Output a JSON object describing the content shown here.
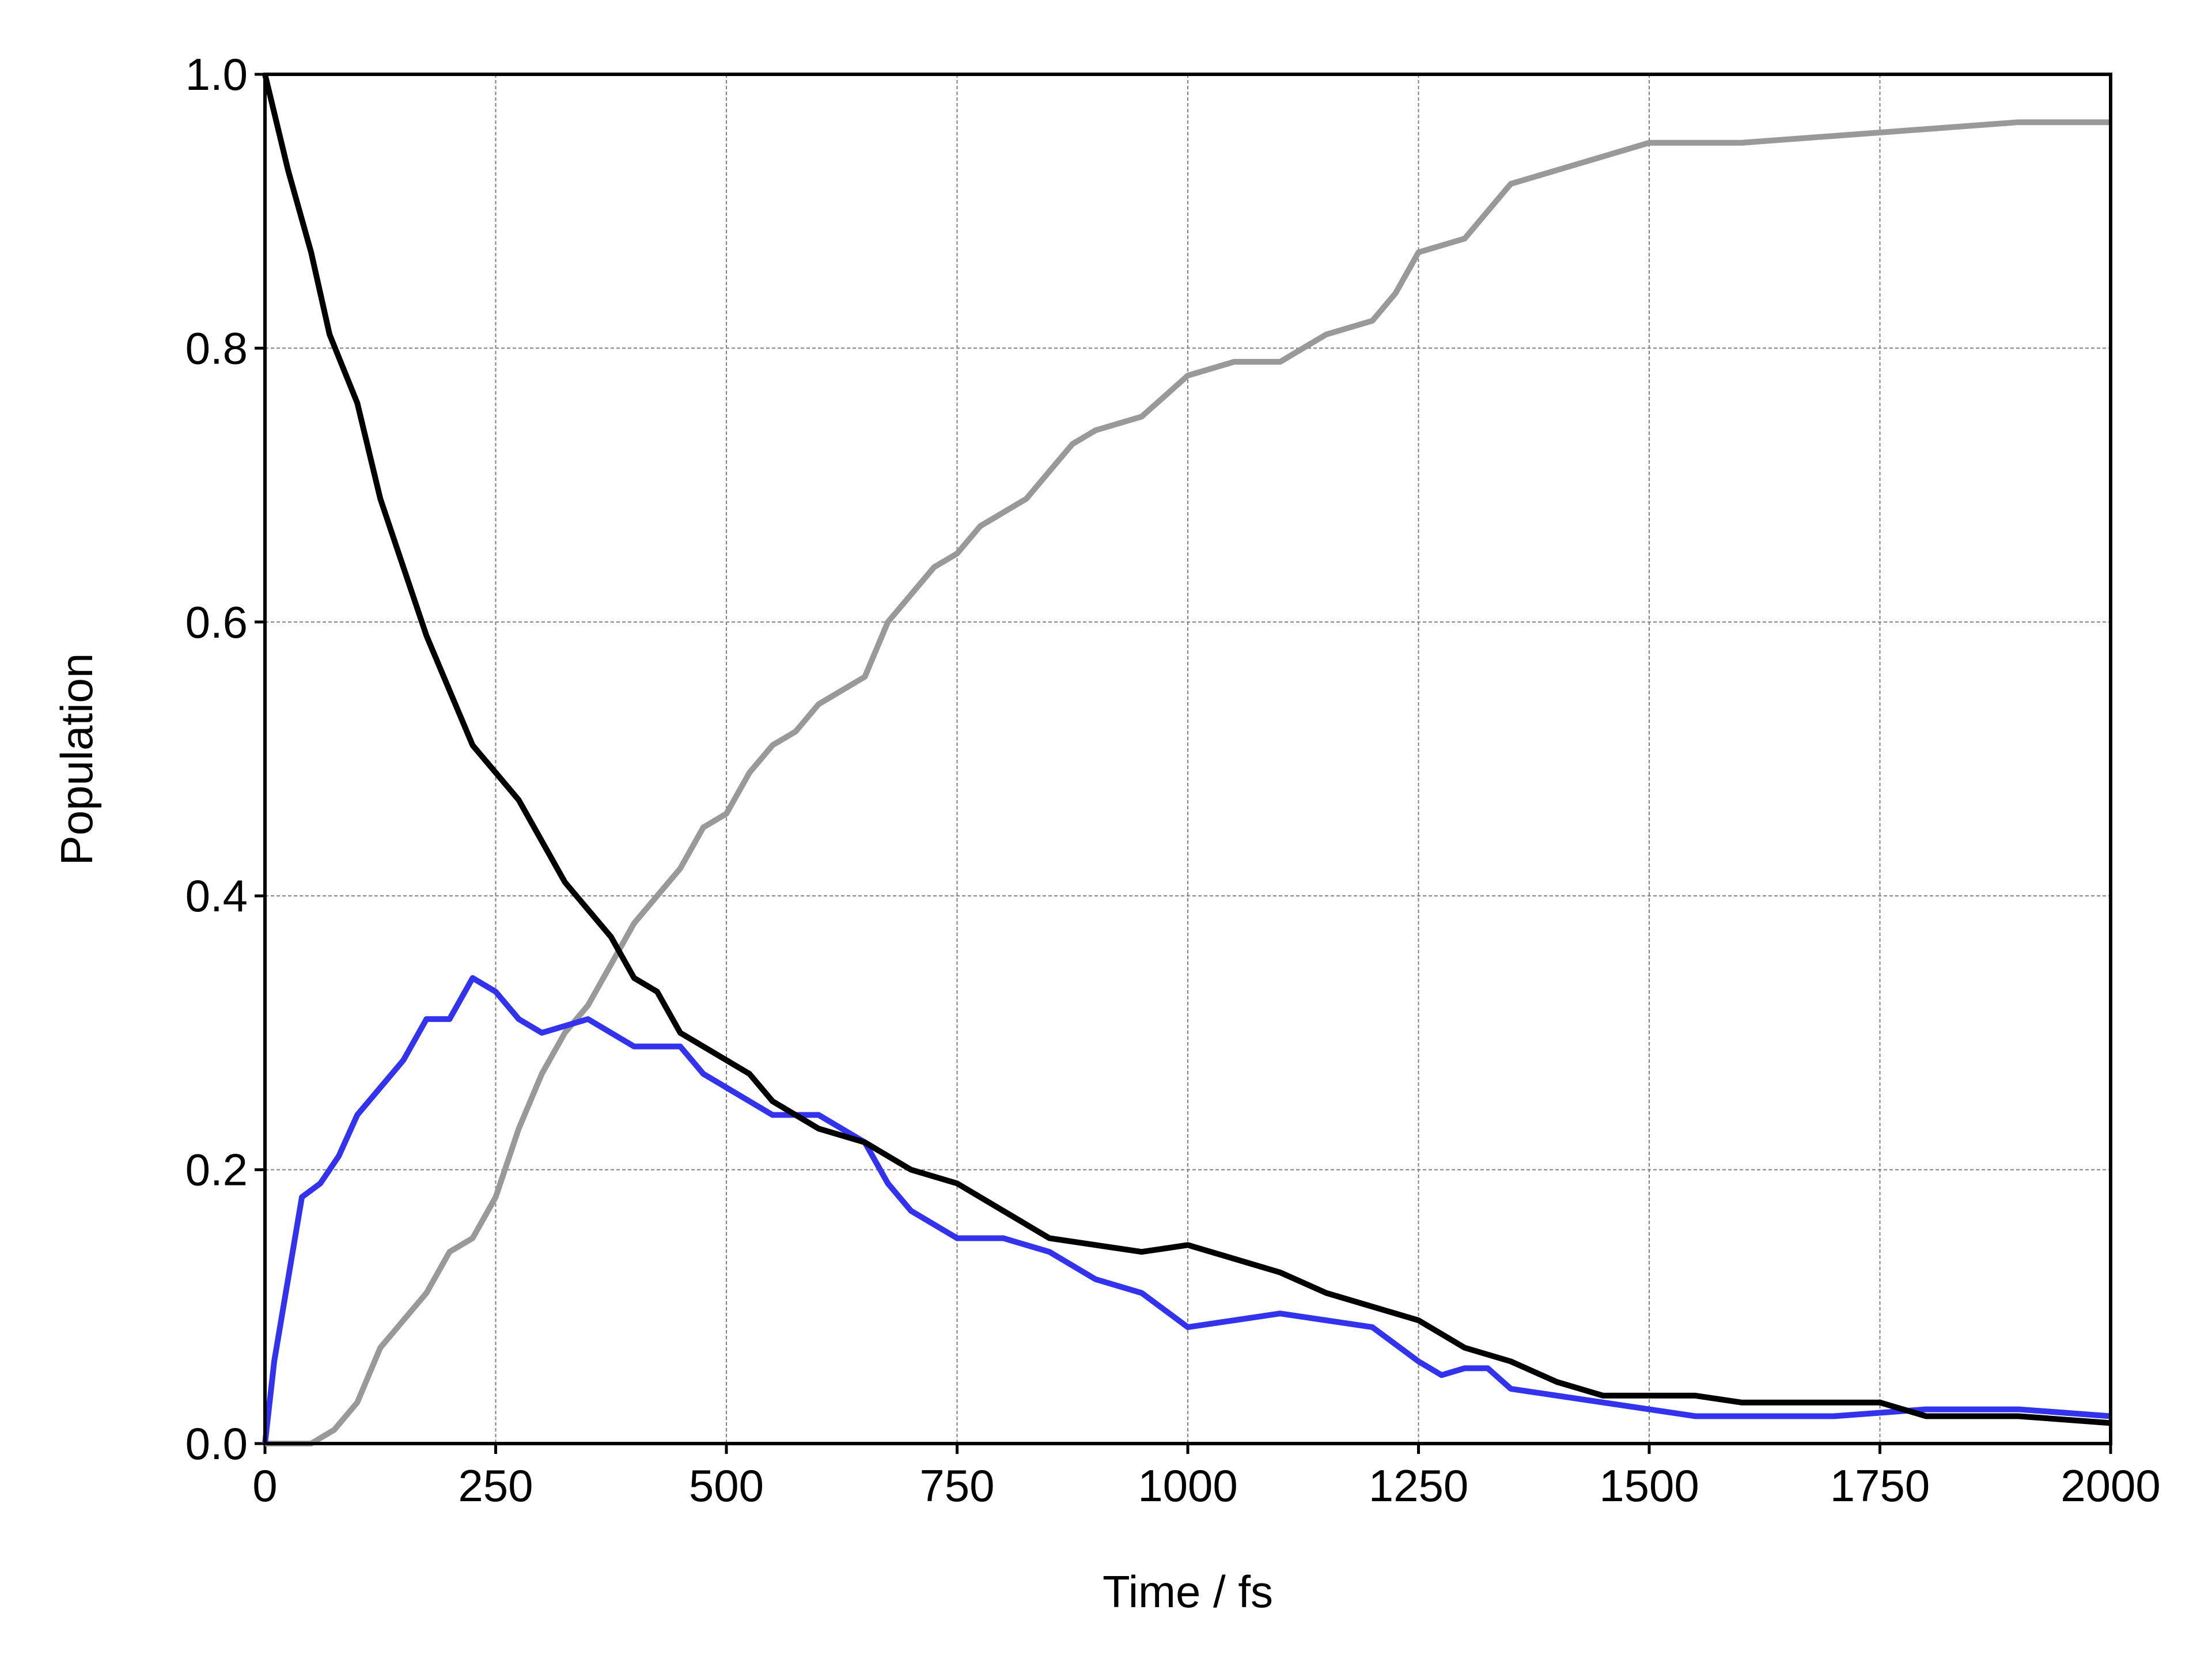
{
  "chart_data": {
    "type": "line",
    "x_label": "Time / fs",
    "y_label": "Population",
    "xlim": [
      0,
      2000
    ],
    "ylim": [
      0,
      1
    ],
    "xticks": [
      0,
      250,
      500,
      750,
      1000,
      1250,
      1500,
      1750,
      2000
    ],
    "yticks": [
      {
        "value": 0,
        "label": "0.0"
      },
      0.2,
      0.4,
      0.6,
      0.8,
      {
        "value": 1,
        "label": "1.0"
      }
    ],
    "grid": true,
    "series": [
      {
        "color": "#999999",
        "x": [
          0,
          50,
          75,
          100,
          125,
          150,
          175,
          200,
          225,
          250,
          275,
          300,
          325,
          350,
          375,
          400,
          425,
          450,
          475,
          500,
          525,
          550,
          575,
          600,
          650,
          675,
          700,
          725,
          750,
          775,
          800,
          825,
          850,
          875,
          900,
          950,
          1000,
          1050,
          1100,
          1150,
          1200,
          1225,
          1250,
          1300,
          1325,
          1350,
          1400,
          1450,
          1500,
          1600,
          1700,
          1800,
          1900,
          2000
        ],
        "values": [
          0,
          0,
          0.01,
          0.03,
          0.07,
          0.09,
          0.11,
          0.14,
          0.15,
          0.18,
          0.23,
          0.27,
          0.3,
          0.32,
          0.35,
          0.38,
          0.4,
          0.42,
          0.45,
          0.46,
          0.49,
          0.51,
          0.52,
          0.54,
          0.56,
          0.6,
          0.62,
          0.64,
          0.65,
          0.67,
          0.68,
          0.69,
          0.71,
          0.73,
          0.74,
          0.75,
          0.78,
          0.79,
          0.79,
          0.81,
          0.82,
          0.84,
          0.87,
          0.88,
          0.9,
          0.92,
          0.93,
          0.94,
          0.95,
          0.95,
          0.955,
          0.96,
          0.965,
          0.965
        ]
      },
      {
        "color": "#3333ee",
        "x": [
          0,
          10,
          25,
          40,
          60,
          80,
          100,
          125,
          150,
          175,
          200,
          225,
          250,
          275,
          300,
          350,
          375,
          400,
          450,
          475,
          500,
          525,
          550,
          600,
          650,
          675,
          700,
          750,
          800,
          850,
          900,
          950,
          1000,
          1050,
          1100,
          1150,
          1200,
          1250,
          1275,
          1300,
          1325,
          1350,
          1400,
          1450,
          1500,
          1550,
          1600,
          1700,
          1800,
          1900,
          2000
        ],
        "values": [
          0,
          0.06,
          0.12,
          0.18,
          0.19,
          0.21,
          0.24,
          0.26,
          0.28,
          0.31,
          0.31,
          0.34,
          0.33,
          0.31,
          0.3,
          0.31,
          0.3,
          0.29,
          0.29,
          0.27,
          0.26,
          0.25,
          0.24,
          0.24,
          0.22,
          0.19,
          0.17,
          0.15,
          0.15,
          0.14,
          0.12,
          0.11,
          0.085,
          0.09,
          0.095,
          0.09,
          0.085,
          0.06,
          0.05,
          0.055,
          0.055,
          0.04,
          0.035,
          0.03,
          0.025,
          0.02,
          0.02,
          0.02,
          0.025,
          0.025,
          0.02
        ]
      },
      {
        "color": "#000000",
        "x": [
          0,
          25,
          50,
          70,
          100,
          125,
          150,
          175,
          200,
          225,
          250,
          275,
          300,
          325,
          350,
          375,
          400,
          425,
          450,
          475,
          500,
          525,
          550,
          575,
          600,
          650,
          700,
          750,
          800,
          850,
          900,
          950,
          1000,
          1050,
          1100,
          1150,
          1200,
          1250,
          1300,
          1350,
          1400,
          1450,
          1500,
          1550,
          1600,
          1700,
          1750,
          1800,
          1900,
          2000
        ],
        "values": [
          1.0,
          0.93,
          0.87,
          0.81,
          0.76,
          0.69,
          0.64,
          0.59,
          0.55,
          0.51,
          0.49,
          0.47,
          0.44,
          0.41,
          0.39,
          0.37,
          0.34,
          0.33,
          0.3,
          0.29,
          0.28,
          0.27,
          0.25,
          0.24,
          0.23,
          0.22,
          0.2,
          0.19,
          0.17,
          0.15,
          0.145,
          0.14,
          0.145,
          0.135,
          0.125,
          0.11,
          0.1,
          0.09,
          0.07,
          0.06,
          0.045,
          0.035,
          0.035,
          0.035,
          0.03,
          0.03,
          0.03,
          0.02,
          0.02,
          0.015
        ]
      }
    ]
  }
}
